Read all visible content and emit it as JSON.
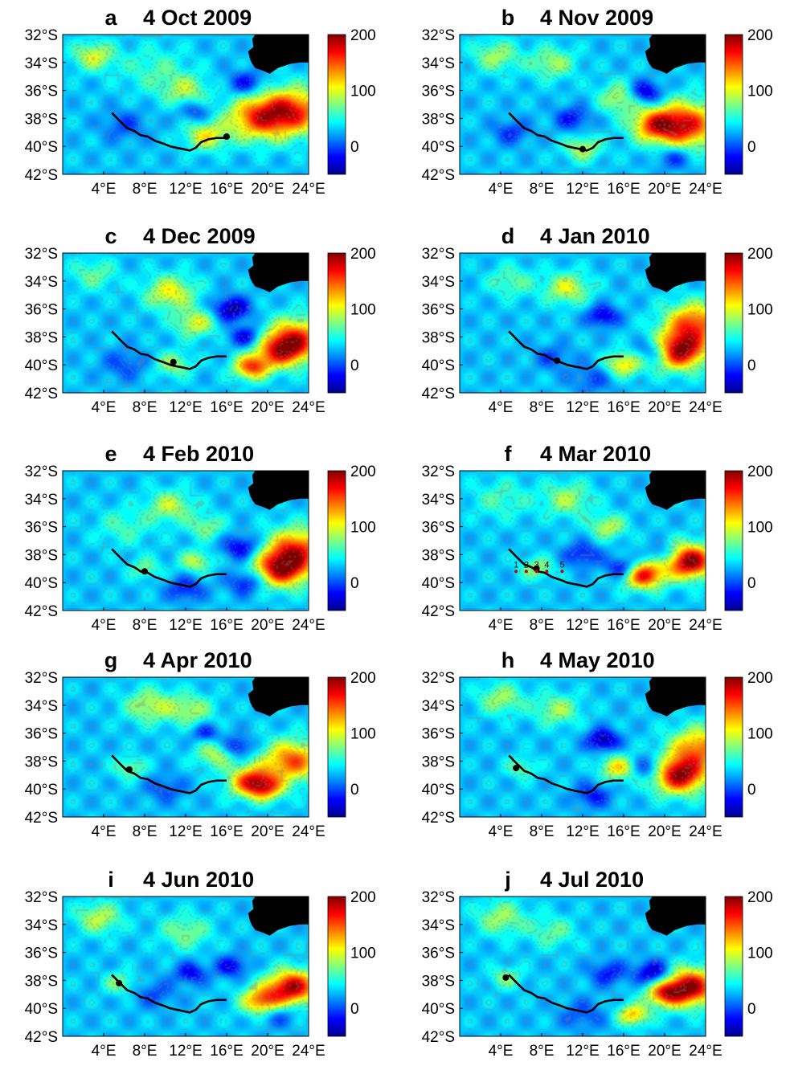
{
  "figure": {
    "colorbar": {
      "ticks": [
        "200",
        "100",
        "0"
      ],
      "range": [
        -50,
        200
      ],
      "colormap": [
        "#00008f",
        "#0000ff",
        "#0080ff",
        "#00ffff",
        "#80ff80",
        "#ffff00",
        "#ff8000",
        "#ff0000",
        "#800000"
      ]
    },
    "lat_ticks": [
      "32°S",
      "34°S",
      "36°S",
      "38°S",
      "40°S",
      "42°S"
    ],
    "lon_ticks": [
      "4°E",
      "8°E",
      "12°E",
      "16°E",
      "20°E",
      "24°E"
    ],
    "extent": {
      "lon": [
        0,
        24
      ],
      "lat": [
        -42,
        -32
      ]
    },
    "land_color": "#000000",
    "track_color": "#000000",
    "marker_color": "#cc0000"
  },
  "panels": [
    {
      "id": "a",
      "label": "a",
      "date": "4 Oct 2009",
      "blobs": [
        [
          3.0,
          -33.5,
          4.5,
          0.9
        ],
        [
          12.0,
          -36.0,
          3.5,
          1.0
        ],
        [
          19.0,
          -38.0,
          7.0,
          1.4
        ],
        [
          22.5,
          -37.5,
          8.5,
          1.5
        ],
        [
          14.0,
          -39.3,
          5.0,
          0.9
        ],
        [
          18.0,
          -35.5,
          -3.5,
          0.8
        ],
        [
          13.0,
          -37.5,
          -2.5,
          0.7
        ],
        [
          6.0,
          -38.5,
          -2.0,
          1.0
        ],
        [
          9.0,
          -34.5,
          2.0,
          1.5
        ]
      ],
      "dot": [
        16.0,
        -39.3
      ]
    },
    {
      "id": "b",
      "label": "b",
      "date": "4 Nov 2009",
      "blobs": [
        [
          3.5,
          -33.5,
          3.5,
          1.0
        ],
        [
          9.0,
          -34.0,
          3.5,
          1.0
        ],
        [
          16.0,
          -36.5,
          4.5,
          1.0
        ],
        [
          22.0,
          -38.5,
          9.5,
          1.5
        ],
        [
          19.0,
          -38.5,
          6.0,
          1.0
        ],
        [
          18.0,
          -36.2,
          -5.5,
          0.8
        ],
        [
          12.0,
          -40.2,
          4.0,
          0.8
        ],
        [
          11.0,
          -38.0,
          -3.0,
          0.8
        ],
        [
          5.0,
          -39.0,
          -2.5,
          0.8
        ],
        [
          21.0,
          -40.8,
          -3.0,
          0.8
        ]
      ],
      "dot": [
        12.0,
        -40.2
      ]
    },
    {
      "id": "c",
      "label": "c",
      "date": "4 Dec 2009",
      "blobs": [
        [
          10.5,
          -34.8,
          5.0,
          1.1
        ],
        [
          13.0,
          -37.0,
          4.5,
          0.9
        ],
        [
          23.0,
          -38.0,
          7.0,
          1.3
        ],
        [
          21.5,
          -39.0,
          8.5,
          1.1
        ],
        [
          18.5,
          -40.2,
          8.0,
          0.8
        ],
        [
          16.5,
          -36.0,
          -5.0,
          0.8
        ],
        [
          18.0,
          -38.0,
          -4.0,
          0.7
        ],
        [
          10.8,
          -40.0,
          3.5,
          0.8
        ],
        [
          6.0,
          -40.0,
          -2.0,
          1.0
        ],
        [
          3.0,
          -33.5,
          2.5,
          1.0
        ]
      ],
      "dot": [
        10.8,
        -39.8
      ]
    },
    {
      "id": "d",
      "label": "d",
      "date": "4 Jan 2010",
      "blobs": [
        [
          10.5,
          -34.5,
          4.5,
          1.0
        ],
        [
          5.0,
          -34.0,
          2.5,
          1.0
        ],
        [
          16.0,
          -40.0,
          5.5,
          0.8
        ],
        [
          21.5,
          -39.0,
          11.0,
          1.2
        ],
        [
          23.0,
          -37.0,
          8.0,
          1.3
        ],
        [
          14.0,
          -36.5,
          -4.0,
          0.7
        ],
        [
          19.0,
          -39.0,
          -4.0,
          0.8
        ],
        [
          9.0,
          -39.5,
          -2.0,
          0.8
        ],
        [
          13.0,
          -41.0,
          -2.0,
          1.0
        ]
      ],
      "dot": [
        9.5,
        -39.7
      ]
    },
    {
      "id": "e",
      "label": "e",
      "date": "4 Feb 2010",
      "blobs": [
        [
          10.5,
          -34.5,
          4.0,
          1.0
        ],
        [
          14.0,
          -36.0,
          3.0,
          0.8
        ],
        [
          13.0,
          -38.5,
          4.0,
          0.7
        ],
        [
          21.5,
          -39.0,
          10.5,
          1.2
        ],
        [
          23.0,
          -37.5,
          7.5,
          1.3
        ],
        [
          17.5,
          -37.5,
          -4.0,
          0.8
        ],
        [
          18.0,
          -40.0,
          -3.5,
          0.8
        ],
        [
          8.0,
          -39.0,
          2.5,
          0.7
        ],
        [
          12.0,
          -40.5,
          -3.0,
          0.8
        ],
        [
          6.0,
          -36.0,
          2.0,
          1.2
        ]
      ],
      "dot": [
        8.0,
        -39.2
      ]
    },
    {
      "id": "f",
      "label": "f",
      "date": "4 Mar 2010",
      "blobs": [
        [
          10.5,
          -34.0,
          3.5,
          1.1
        ],
        [
          14.5,
          -36.0,
          4.0,
          0.8
        ],
        [
          18.0,
          -39.5,
          9.5,
          0.9
        ],
        [
          22.5,
          -38.5,
          11.5,
          1.1
        ],
        [
          16.0,
          -39.0,
          -4.5,
          0.7
        ],
        [
          20.0,
          -38.0,
          -3.0,
          0.7
        ],
        [
          12.0,
          -38.0,
          -3.0,
          0.8
        ],
        [
          7.5,
          -39.0,
          3.5,
          0.7
        ],
        [
          4.0,
          -34.0,
          2.0,
          1.3
        ]
      ],
      "dot": [
        7.5,
        -39.0
      ],
      "markers": [
        {
          "t": "1",
          "lon": 5.5,
          "lat": -39.2
        },
        {
          "t": "2",
          "lon": 6.5,
          "lat": -39.2
        },
        {
          "t": "3",
          "lon": 7.5,
          "lat": -39.2
        },
        {
          "t": "4",
          "lon": 8.5,
          "lat": -39.2
        },
        {
          "t": "5",
          "lon": 10.0,
          "lat": -39.2
        }
      ]
    },
    {
      "id": "g",
      "label": "g",
      "date": "4 Apr 2010",
      "blobs": [
        [
          8.5,
          -34.0,
          4.0,
          1.1
        ],
        [
          12.5,
          -34.3,
          3.5,
          1.0
        ],
        [
          15.0,
          -37.5,
          4.0,
          0.9
        ],
        [
          18.5,
          -39.5,
          8.5,
          1.0
        ],
        [
          22.5,
          -38.0,
          8.0,
          1.3
        ],
        [
          20.0,
          -40.0,
          5.0,
          0.8
        ],
        [
          17.0,
          -37.0,
          -4.0,
          0.7
        ],
        [
          14.0,
          -36.0,
          -3.0,
          0.6
        ],
        [
          6.5,
          -38.5,
          3.0,
          0.7
        ],
        [
          10.0,
          -40.0,
          -2.0,
          0.9
        ]
      ],
      "dot": [
        6.5,
        -38.6
      ]
    },
    {
      "id": "h",
      "label": "h",
      "date": "4 May 2010",
      "blobs": [
        [
          4.0,
          -33.5,
          3.5,
          1.0
        ],
        [
          9.5,
          -34.3,
          3.5,
          1.0
        ],
        [
          15.5,
          -38.5,
          5.5,
          0.8
        ],
        [
          21.5,
          -39.0,
          11.0,
          1.2
        ],
        [
          23.5,
          -37.0,
          7.0,
          1.3
        ],
        [
          14.0,
          -36.5,
          -5.0,
          0.7
        ],
        [
          18.5,
          -38.5,
          -4.0,
          0.8
        ],
        [
          13.0,
          -40.5,
          -3.0,
          0.8
        ],
        [
          6.0,
          -38.5,
          2.5,
          0.7
        ]
      ],
      "dot": [
        5.5,
        -38.5
      ]
    },
    {
      "id": "i",
      "label": "i",
      "date": "4 Jun 2010",
      "blobs": [
        [
          3.5,
          -33.5,
          4.0,
          1.0
        ],
        [
          12.0,
          -34.5,
          3.0,
          1.1
        ],
        [
          12.5,
          -37.5,
          -3.5,
          0.7
        ],
        [
          19.5,
          -39.5,
          7.5,
          0.9
        ],
        [
          22.5,
          -38.5,
          10.5,
          1.1
        ],
        [
          21.0,
          -40.5,
          -2.5,
          0.8
        ],
        [
          16.5,
          -37.0,
          -3.5,
          0.7
        ],
        [
          5.5,
          -38.2,
          3.0,
          0.7
        ],
        [
          9.0,
          -39.0,
          -2.0,
          0.9
        ]
      ],
      "dot": [
        5.5,
        -38.2
      ]
    },
    {
      "id": "j",
      "label": "j",
      "date": "4 Jul 2010",
      "blobs": [
        [
          4.0,
          -33.5,
          3.5,
          1.1
        ],
        [
          9.0,
          -34.5,
          2.5,
          1.0
        ],
        [
          17.0,
          -40.5,
          6.0,
          0.7
        ],
        [
          22.5,
          -38.5,
          11.0,
          1.2
        ],
        [
          20.0,
          -39.0,
          6.5,
          0.8
        ],
        [
          19.0,
          -37.5,
          -5.0,
          0.8
        ],
        [
          14.5,
          -37.5,
          -3.0,
          0.8
        ],
        [
          4.5,
          -37.8,
          3.0,
          0.7
        ],
        [
          12.0,
          -40.5,
          -2.0,
          1.0
        ]
      ],
      "dot": [
        4.5,
        -37.8
      ]
    }
  ]
}
